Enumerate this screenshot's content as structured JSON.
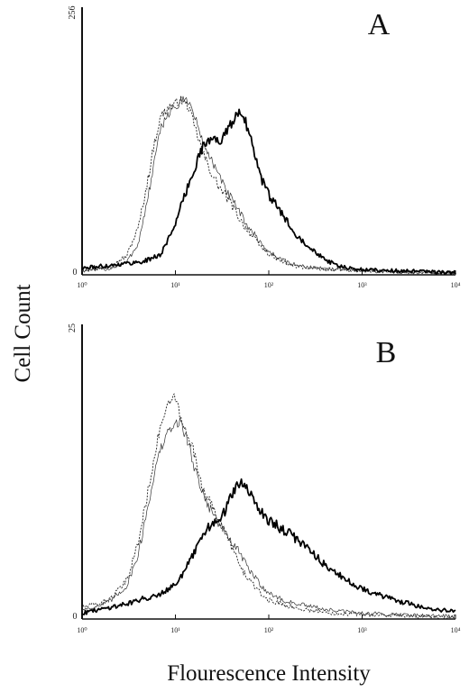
{
  "figure": {
    "ylabel": "Cell Count",
    "xlabel": "Flourescence Intensity"
  },
  "chart_data": [
    {
      "type": "line",
      "panel": "A",
      "xscale": "log",
      "xlim": [
        1,
        10000
      ],
      "ylim": [
        0,
        256
      ],
      "y_tick_labels": [
        "0",
        "256"
      ],
      "x_tick_labels": [
        "10⁰",
        "10¹",
        "10²",
        "10³",
        "10⁴"
      ],
      "grid": false,
      "series": [
        {
          "style": "dotted",
          "x": [
            1,
            1.5,
            2,
            3,
            4,
            5,
            6,
            7,
            8,
            9,
            10,
            11,
            12,
            13,
            14,
            15,
            17,
            20,
            25,
            30,
            40,
            50,
            60,
            80,
            100,
            130,
            160,
            200,
            300,
            500,
            1000,
            2000,
            5000,
            10000
          ],
          "y": [
            5,
            6,
            8,
            18,
            45,
            88,
            128,
            152,
            158,
            162,
            163,
            168,
            166,
            163,
            160,
            150,
            135,
            115,
            95,
            83,
            67,
            52,
            42,
            28,
            20,
            14,
            10,
            8,
            6,
            5,
            4,
            3,
            2,
            2
          ]
        },
        {
          "style": "thin",
          "x": [
            1,
            1.5,
            2,
            3,
            4,
            5,
            6,
            7,
            8,
            9,
            10,
            11,
            12,
            13,
            14,
            15,
            17,
            20,
            25,
            30,
            40,
            50,
            60,
            80,
            100,
            130,
            160,
            200,
            300,
            500,
            1000,
            2000,
            5000,
            10000
          ],
          "y": [
            4,
            5,
            6,
            12,
            30,
            70,
            110,
            140,
            152,
            158,
            160,
            163,
            166,
            170,
            165,
            158,
            145,
            125,
            108,
            92,
            72,
            58,
            46,
            32,
            22,
            16,
            12,
            9,
            7,
            5,
            4,
            3,
            2,
            2
          ]
        },
        {
          "style": "thick",
          "x": [
            1,
            1.5,
            2,
            3,
            4,
            5,
            6,
            7,
            8,
            10,
            12,
            15,
            18,
            20,
            25,
            30,
            35,
            40,
            45,
            50,
            55,
            60,
            70,
            80,
            100,
            130,
            160,
            200,
            250,
            300,
            400,
            500,
            700,
            1000,
            2000,
            5000,
            10000
          ],
          "y": [
            6,
            8,
            9,
            11,
            12,
            14,
            17,
            20,
            30,
            50,
            70,
            95,
            115,
            124,
            130,
            128,
            136,
            145,
            153,
            158,
            150,
            138,
            118,
            96,
            76,
            62,
            50,
            38,
            30,
            24,
            15,
            10,
            6,
            5,
            4,
            3,
            2
          ]
        }
      ]
    },
    {
      "type": "line",
      "panel": "B",
      "xscale": "log",
      "xlim": [
        1,
        10000
      ],
      "ylim": [
        0,
        25
      ],
      "y_tick_labels": [
        "0",
        "25"
      ],
      "x_tick_labels": [
        "10⁰",
        "10¹",
        "10²",
        "10³",
        "10⁴"
      ],
      "grid": false,
      "series": [
        {
          "style": "dotted",
          "x": [
            1,
            1.5,
            2,
            3,
            4,
            5,
            6,
            7,
            8,
            9,
            10,
            11,
            12,
            13,
            14,
            15,
            17,
            20,
            25,
            30,
            40,
            50,
            60,
            80,
            100,
            150,
            200,
            300,
            500,
            1000,
            2000,
            5000,
            10000
          ],
          "y": [
            1,
            1.3,
            1.7,
            3.2,
            6.5,
            10.5,
            14,
            16.5,
            17.8,
            18.5,
            18.8,
            17.5,
            16.3,
            16,
            15.5,
            14.8,
            13,
            11,
            9.4,
            8.2,
            6.2,
            4.3,
            3.5,
            2.2,
            1.6,
            1.2,
            0.9,
            0.7,
            0.5,
            0.4,
            0.3,
            0.2,
            0.1
          ]
        },
        {
          "style": "thin",
          "x": [
            1,
            1.5,
            2,
            3,
            4,
            5,
            6,
            7,
            8,
            9,
            10,
            11,
            12,
            13,
            14,
            15,
            17,
            20,
            25,
            30,
            40,
            50,
            60,
            80,
            100,
            150,
            200,
            300,
            500,
            1000,
            2000,
            5000,
            10000
          ],
          "y": [
            0.8,
            1.1,
            1.5,
            2.8,
            5.5,
            9.3,
            12.5,
            14.5,
            15.5,
            16.2,
            16.5,
            16.8,
            16.2,
            15.5,
            14.8,
            13.5,
            12.3,
            10.5,
            9,
            8,
            6.5,
            5.5,
            4.3,
            3,
            2.2,
            1.5,
            1.3,
            1,
            0.7,
            0.5,
            0.4,
            0.3,
            0.2
          ]
        },
        {
          "style": "thick",
          "x": [
            1,
            1.5,
            2,
            3,
            4,
            5,
            6,
            7,
            8,
            10,
            12,
            15,
            18,
            20,
            25,
            30,
            35,
            40,
            45,
            50,
            55,
            60,
            70,
            80,
            100,
            130,
            160,
            200,
            250,
            300,
            400,
            500,
            700,
            1000,
            2000,
            5000,
            10000
          ],
          "y": [
            0.5,
            0.8,
            1,
            1.3,
            1.6,
            1.8,
            2,
            2.2,
            2.5,
            3,
            3.8,
            5.2,
            6.4,
            7.2,
            8.3,
            8.1,
            9.5,
            10.6,
            11.2,
            11.6,
            11.2,
            10.8,
            10,
            9.3,
            8.4,
            7.8,
            7.3,
            6.8,
            6.2,
            5.6,
            4.6,
            4,
            3.2,
            2.6,
            1.7,
            0.9,
            0.6
          ]
        }
      ]
    }
  ]
}
